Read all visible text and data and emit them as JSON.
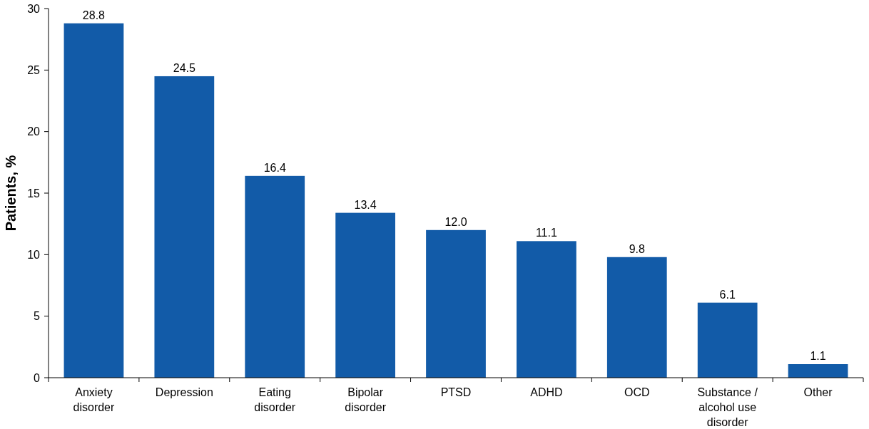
{
  "chart_data": {
    "type": "bar",
    "ylabel": "Patients, %",
    "categories": [
      "Anxiety disorder",
      "Depression",
      "Eating disorder",
      "Bipolar disorder",
      "PTSD",
      "ADHD",
      "OCD",
      "Substance / alcohol use disorder",
      "Other"
    ],
    "values": [
      28.8,
      24.5,
      16.4,
      13.4,
      12.0,
      11.1,
      9.8,
      6.1,
      1.1
    ],
    "value_labels": [
      "28.8",
      "24.5",
      "16.4",
      "13.4",
      "12.0",
      "11.1",
      "9.8",
      "6.1",
      "1.1"
    ],
    "color": "#125ba8",
    "ylim": [
      0,
      30
    ],
    "yticks": [
      0,
      5,
      10,
      15,
      20,
      25,
      30
    ],
    "grid": false
  }
}
